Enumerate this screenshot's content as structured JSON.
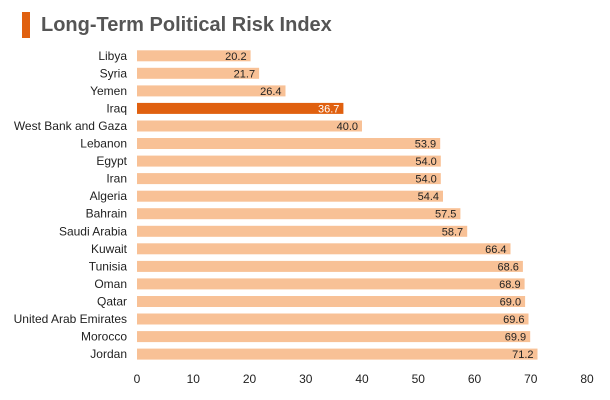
{
  "chart_data": {
    "type": "bar",
    "orientation": "horizontal",
    "title": "Long-Term Political Risk Index",
    "xlabel": "",
    "ylabel": "",
    "xlim": [
      0,
      80
    ],
    "ticks": [
      "0",
      "10",
      "20",
      "30",
      "40",
      "50",
      "60",
      "70",
      "80"
    ],
    "grid": false,
    "legend": "none",
    "categories": [
      "Libya",
      "Syria",
      "Yemen",
      "Iraq",
      "West Bank and Gaza",
      "Lebanon",
      "Egypt",
      "Iran",
      "Algeria",
      "Bahrain",
      "Saudi Arabia",
      "Kuwait",
      "Tunisia",
      "Oman",
      "Qatar",
      "United Arab Emirates",
      "Morocco",
      "Jordan"
    ],
    "values": [
      20.2,
      21.7,
      26.4,
      36.7,
      40.0,
      53.9,
      54.0,
      54.0,
      54.4,
      57.5,
      58.7,
      66.4,
      68.6,
      68.9,
      69.0,
      69.6,
      69.9,
      71.2
    ],
    "value_labels": [
      "20.2",
      "21.7",
      "26.4",
      "36.7",
      "40.0",
      "53.9",
      "54.0",
      "54.0",
      "54.4",
      "57.5",
      "58.7",
      "66.4",
      "68.6",
      "68.9",
      "69.0",
      "69.6",
      "69.9",
      "71.2"
    ],
    "highlight": "Iraq",
    "colors": {
      "bar": "#f8c196",
      "highlight": "#e0600f",
      "accent": "#e0600f"
    }
  }
}
